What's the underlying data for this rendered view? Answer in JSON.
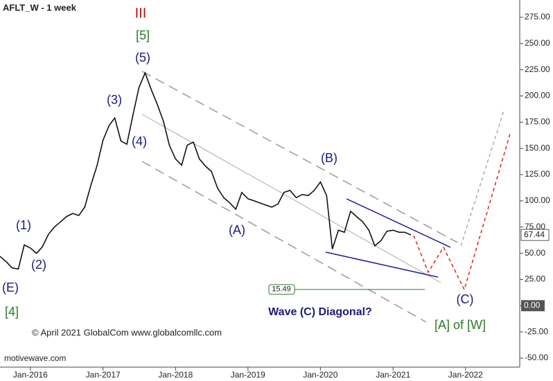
{
  "chart_data": {
    "type": "line",
    "title": "AFLT_W - 1 week",
    "source": "motivewave.com",
    "copyright": "© April 2021 GlobalCom www.globalcomllc.com",
    "annotations": [
      "III",
      "[5]",
      "(5)",
      "(3)",
      "(4)",
      "(1)",
      "(2)",
      "(E)",
      "[4]",
      "(A)",
      "(B)",
      "(C)",
      "Wave (C) Diagonal?",
      "[A] of [W]"
    ],
    "x": [
      "Aug-2015",
      "Sep-2015",
      "Oct-2015",
      "Nov-2015",
      "Dec-2015",
      "Jan-2016",
      "Feb-2016",
      "Mar-2016",
      "Apr-2016",
      "May-2016",
      "Jun-2016",
      "Jul-2016",
      "Aug-2016",
      "Sep-2016",
      "Oct-2016",
      "Nov-2016",
      "Dec-2016",
      "Jan-2017",
      "Feb-2017",
      "Mar-2017",
      "Apr-2017",
      "May-2017",
      "Jun-2017",
      "Jul-2017",
      "Aug-2017",
      "Sep-2017",
      "Oct-2017",
      "Nov-2017",
      "Dec-2017",
      "Jan-2018",
      "Feb-2018",
      "Mar-2018",
      "Apr-2018",
      "May-2018",
      "Jun-2018",
      "Jul-2018",
      "Aug-2018",
      "Sep-2018",
      "Oct-2018",
      "Nov-2018",
      "Dec-2018",
      "Jan-2019",
      "Feb-2019",
      "Mar-2019",
      "Apr-2019",
      "May-2019",
      "Jun-2019",
      "Jul-2019",
      "Aug-2019",
      "Sep-2019",
      "Oct-2019",
      "Nov-2019",
      "Dec-2019",
      "Jan-2020",
      "Feb-2020",
      "Mar-2020",
      "Apr-2020",
      "May-2020",
      "Jun-2020",
      "Jul-2020",
      "Aug-2020",
      "Sep-2020",
      "Oct-2020",
      "Nov-2020",
      "Dec-2020",
      "Jan-2021",
      "Feb-2021",
      "Mar-2021",
      "Apr-2021"
    ],
    "values": [
      47,
      42,
      36,
      35,
      58,
      55,
      50,
      56,
      68,
      75,
      80,
      85,
      88,
      86,
      94,
      115,
      133,
      158,
      172,
      179,
      157,
      154,
      182,
      208,
      222,
      206,
      192,
      176,
      153,
      140,
      134,
      153,
      156,
      140,
      133,
      128,
      112,
      103,
      98,
      92,
      108,
      102,
      100,
      98,
      96,
      94,
      97,
      108,
      110,
      103,
      106,
      105,
      110,
      118,
      105,
      54,
      72,
      70,
      90,
      85,
      80,
      72,
      57,
      62,
      71,
      72,
      70,
      70,
      67.44
    ],
    "color": "#111111",
    "xlim": [
      "Aug-2015",
      "Oct-2022"
    ],
    "xticks": [
      "Jan-2016",
      "Jan-2017",
      "Jan-2018",
      "Jan-2019",
      "Jan-2020",
      "Jan-2021",
      "Jan-2022"
    ],
    "ylim": [
      -58.6,
      291.5
    ],
    "yticks": [
      {
        "value": 275,
        "label": "275.00"
      },
      {
        "value": 250,
        "label": "250.00"
      },
      {
        "value": 225,
        "label": "225.00"
      },
      {
        "value": 200,
        "label": "200.00"
      },
      {
        "value": 175,
        "label": "175.00"
      },
      {
        "value": 150,
        "label": "150.00"
      },
      {
        "value": 125,
        "label": "125.00"
      },
      {
        "value": 100,
        "label": "100.00"
      },
      {
        "value": 75,
        "label": "75.00"
      },
      {
        "value": 50,
        "label": "50.00"
      },
      {
        "value": 25,
        "label": "25.00"
      },
      {
        "value": 0,
        "label": "0.00"
      },
      {
        "value": -25,
        "label": "-25.00"
      },
      {
        "value": -50,
        "label": "-50.00"
      }
    ],
    "last_value": 67.44,
    "zero_marker": {
      "value": 0,
      "label": "0.00"
    },
    "target": 15.49
  }
}
